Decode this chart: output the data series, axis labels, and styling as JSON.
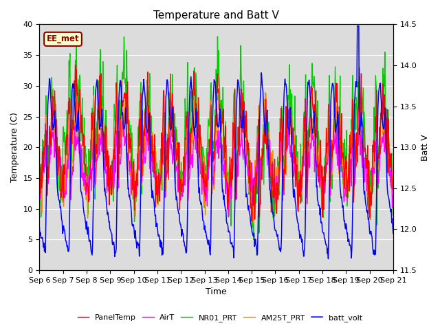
{
  "title": "Temperature and Batt V",
  "xlabel": "Time",
  "ylabel_left": "Temperature (C)",
  "ylabel_right": "Batt V",
  "ylim_left": [
    0,
    40
  ],
  "ylim_right": [
    11.5,
    14.5
  ],
  "x_tick_labels": [
    "Sep 6",
    "Sep 7",
    "Sep 8",
    "Sep 9",
    "Sep 10",
    "Sep 11",
    "Sep 12",
    "Sep 13",
    "Sep 14",
    "Sep 15",
    "Sep 16",
    "Sep 17",
    "Sep 18",
    "Sep 19",
    "Sep 20",
    "Sep 21"
  ],
  "annotation_text": "EE_met",
  "annotation_box_color": "#8B0000",
  "annotation_text_color": "#8B0000",
  "annotation_box_fill": "#ffffcc",
  "background_color": "#dcdcdc",
  "legend_entries": [
    "PanelTemp",
    "AirT",
    "NR01_PRT",
    "AM25T_PRT",
    "batt_volt"
  ],
  "legend_colors": [
    "#ff0000",
    "#ff00ff",
    "#00cc00",
    "#ff8800",
    "#0000ff"
  ],
  "num_days": 15,
  "seed": 42
}
